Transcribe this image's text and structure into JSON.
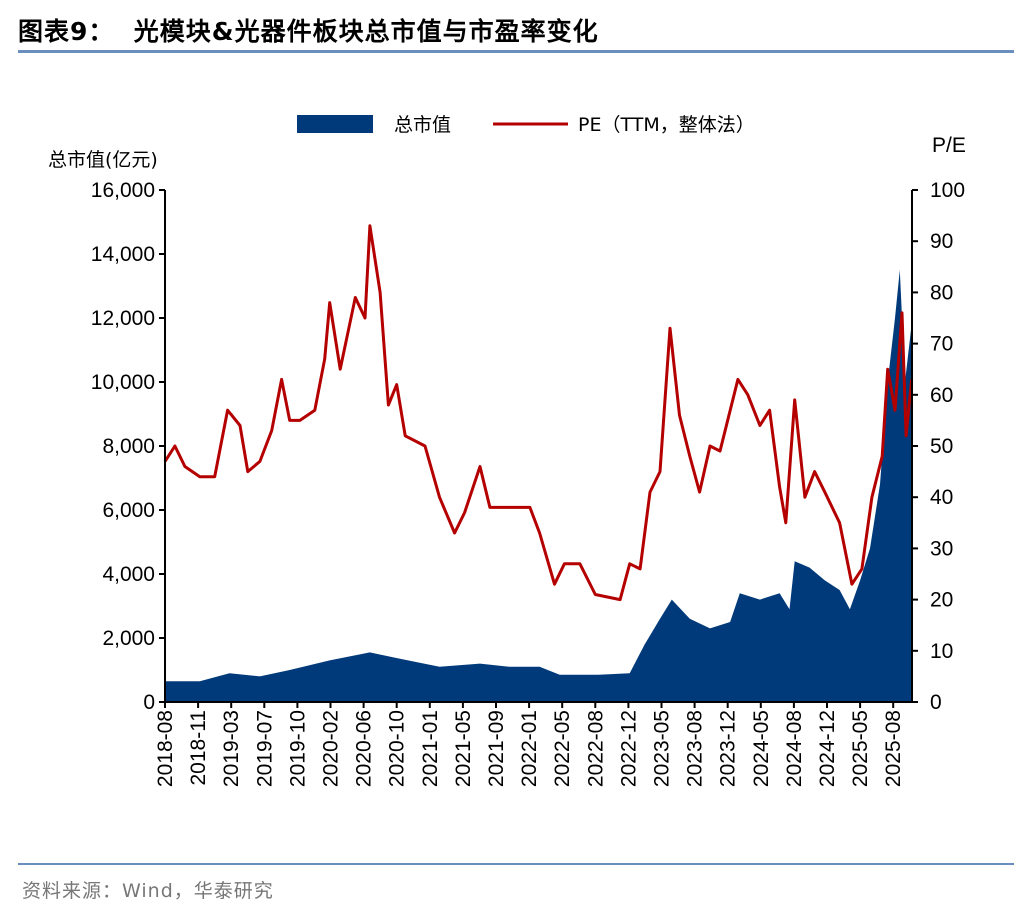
{
  "header": {
    "title": "图表9：  光模块&光器件板块总市值与市盈率变化"
  },
  "footer": {
    "source": "资料来源：Wind，华泰研究"
  },
  "chart_data": {
    "type": "area+line",
    "title": "光模块&光器件板块总市值与市盈率变化",
    "legend": {
      "placement": "top",
      "entries": [
        "总市值",
        "PE（TTM，整体法）"
      ]
    },
    "colors": {
      "market_cap": "#003a7a",
      "pe": "#b50000"
    },
    "ylabel_left": "总市值(亿元)",
    "ylabel_right": "P/E",
    "ylim_left": [
      0,
      16000
    ],
    "ylim_right": [
      0,
      100
    ],
    "yticks_left": [
      "0",
      "2,000",
      "4,000",
      "6,000",
      "8,000",
      "10,000",
      "12,000",
      "14,000",
      "16,000"
    ],
    "yticks_right": [
      "0",
      "10",
      "20",
      "30",
      "40",
      "50",
      "60",
      "70",
      "80",
      "90",
      "100"
    ],
    "xticks": [
      "2018-08",
      "2018-11",
      "2019-03",
      "2019-07",
      "2019-10",
      "2020-02",
      "2020-06",
      "2020-10",
      "2021-01",
      "2021-05",
      "2021-09",
      "2022-01",
      "2022-05",
      "2022-08",
      "2022-12",
      "2023-05",
      "2023-08",
      "2023-12",
      "2024-05",
      "2024-08",
      "2024-12",
      "2025-05",
      "2025-08"
    ],
    "grid": false,
    "series": [
      {
        "name": "总市值",
        "type": "area",
        "axis": "left",
        "points": [
          [
            "2018-08-01",
            650
          ],
          [
            "2018-11-07",
            650
          ],
          [
            "2019-02-25",
            900
          ],
          [
            "2019-06-15",
            800
          ],
          [
            "2019-09-10",
            1000
          ],
          [
            "2020-01-28",
            1300
          ],
          [
            "2020-06-24",
            1550
          ],
          [
            "2020-10-10",
            1350
          ],
          [
            "2021-02-06",
            1100
          ],
          [
            "2021-07-03",
            1200
          ],
          [
            "2021-10-21",
            1100
          ],
          [
            "2022-02-09",
            1100
          ],
          [
            "2022-04-22",
            850
          ],
          [
            "2022-08-13",
            850
          ],
          [
            "2022-12-07",
            900
          ],
          [
            "2023-02-15",
            1800
          ],
          [
            "2023-04-24",
            2600
          ],
          [
            "2023-05-29",
            3200
          ],
          [
            "2023-07-18",
            2600
          ],
          [
            "2023-09-27",
            2300
          ],
          [
            "2023-12-12",
            2500
          ],
          [
            "2024-01-26",
            3400
          ],
          [
            "2024-04-27",
            3200
          ],
          [
            "2024-06-22",
            3400
          ],
          [
            "2024-07-19",
            2900
          ],
          [
            "2024-08-04",
            4400
          ],
          [
            "2024-09-28",
            4200
          ],
          [
            "2024-11-23",
            3800
          ],
          [
            "2025-01-28",
            3500
          ],
          [
            "2025-03-15",
            2900
          ],
          [
            "2025-05-01",
            3800
          ],
          [
            "2025-05-28",
            4800
          ],
          [
            "2025-06-25",
            6800
          ],
          [
            "2025-07-16",
            10000
          ],
          [
            "2025-08-06",
            12000
          ],
          [
            "2025-08-19",
            13500
          ],
          [
            "2025-09-03",
            10000
          ],
          [
            "2025-09-21",
            11800
          ]
        ]
      },
      {
        "name": "PE（TTM，整体法）",
        "type": "line",
        "axis": "right",
        "points": [
          [
            "2018-08-01",
            47
          ],
          [
            "2018-08-28",
            50
          ],
          [
            "2018-09-25",
            46
          ],
          [
            "2018-11-07",
            44
          ],
          [
            "2019-01-01",
            44
          ],
          [
            "2019-02-18",
            57
          ],
          [
            "2019-04-03",
            54
          ],
          [
            "2019-05-01",
            45
          ],
          [
            "2019-06-15",
            47
          ],
          [
            "2019-07-21",
            53
          ],
          [
            "2019-08-18",
            63
          ],
          [
            "2019-09-10",
            55
          ],
          [
            "2019-10-10",
            55
          ],
          [
            "2019-12-04",
            57
          ],
          [
            "2020-01-10",
            67
          ],
          [
            "2020-01-28",
            78
          ],
          [
            "2020-03-06",
            65
          ],
          [
            "2020-05-01",
            79
          ],
          [
            "2020-06-06",
            75
          ],
          [
            "2020-06-24",
            93
          ],
          [
            "2020-08-01",
            80
          ],
          [
            "2020-09-01",
            58
          ],
          [
            "2020-10-01",
            62
          ],
          [
            "2020-10-24",
            52
          ],
          [
            "2020-12-18",
            50
          ],
          [
            "2021-02-06",
            40
          ],
          [
            "2021-04-01",
            33
          ],
          [
            "2021-05-07",
            37
          ],
          [
            "2021-07-03",
            46
          ],
          [
            "2021-08-09",
            38
          ],
          [
            "2021-10-21",
            38
          ],
          [
            "2022-01-04",
            38
          ],
          [
            "2022-02-09",
            33
          ],
          [
            "2022-04-03",
            23
          ],
          [
            "2022-05-07",
            27
          ],
          [
            "2022-06-19",
            27
          ],
          [
            "2022-08-01",
            21
          ],
          [
            "2022-11-01",
            20
          ],
          [
            "2022-12-07",
            27
          ],
          [
            "2023-01-24",
            26
          ],
          [
            "2023-03-09",
            41
          ],
          [
            "2023-04-24",
            45
          ],
          [
            "2023-05-24",
            73
          ],
          [
            "2023-06-20",
            56
          ],
          [
            "2023-07-18",
            48
          ],
          [
            "2023-08-19",
            41
          ],
          [
            "2023-09-27",
            50
          ],
          [
            "2023-11-03",
            49
          ],
          [
            "2024-01-17",
            63
          ],
          [
            "2024-03-02",
            60
          ],
          [
            "2024-04-27",
            54
          ],
          [
            "2024-05-25",
            57
          ],
          [
            "2024-06-22",
            42
          ],
          [
            "2024-07-09",
            35
          ],
          [
            "2024-08-04",
            59
          ],
          [
            "2024-09-11",
            40
          ],
          [
            "2024-10-16",
            45
          ],
          [
            "2024-11-23",
            41
          ],
          [
            "2025-01-28",
            35
          ],
          [
            "2025-03-24",
            23
          ],
          [
            "2025-05-06",
            26
          ],
          [
            "2025-06-03",
            40
          ],
          [
            "2025-07-01",
            48
          ],
          [
            "2025-07-16",
            65
          ],
          [
            "2025-08-06",
            57
          ],
          [
            "2025-08-25",
            76
          ],
          [
            "2025-09-06",
            52
          ],
          [
            "2025-09-21",
            63
          ]
        ]
      }
    ]
  }
}
